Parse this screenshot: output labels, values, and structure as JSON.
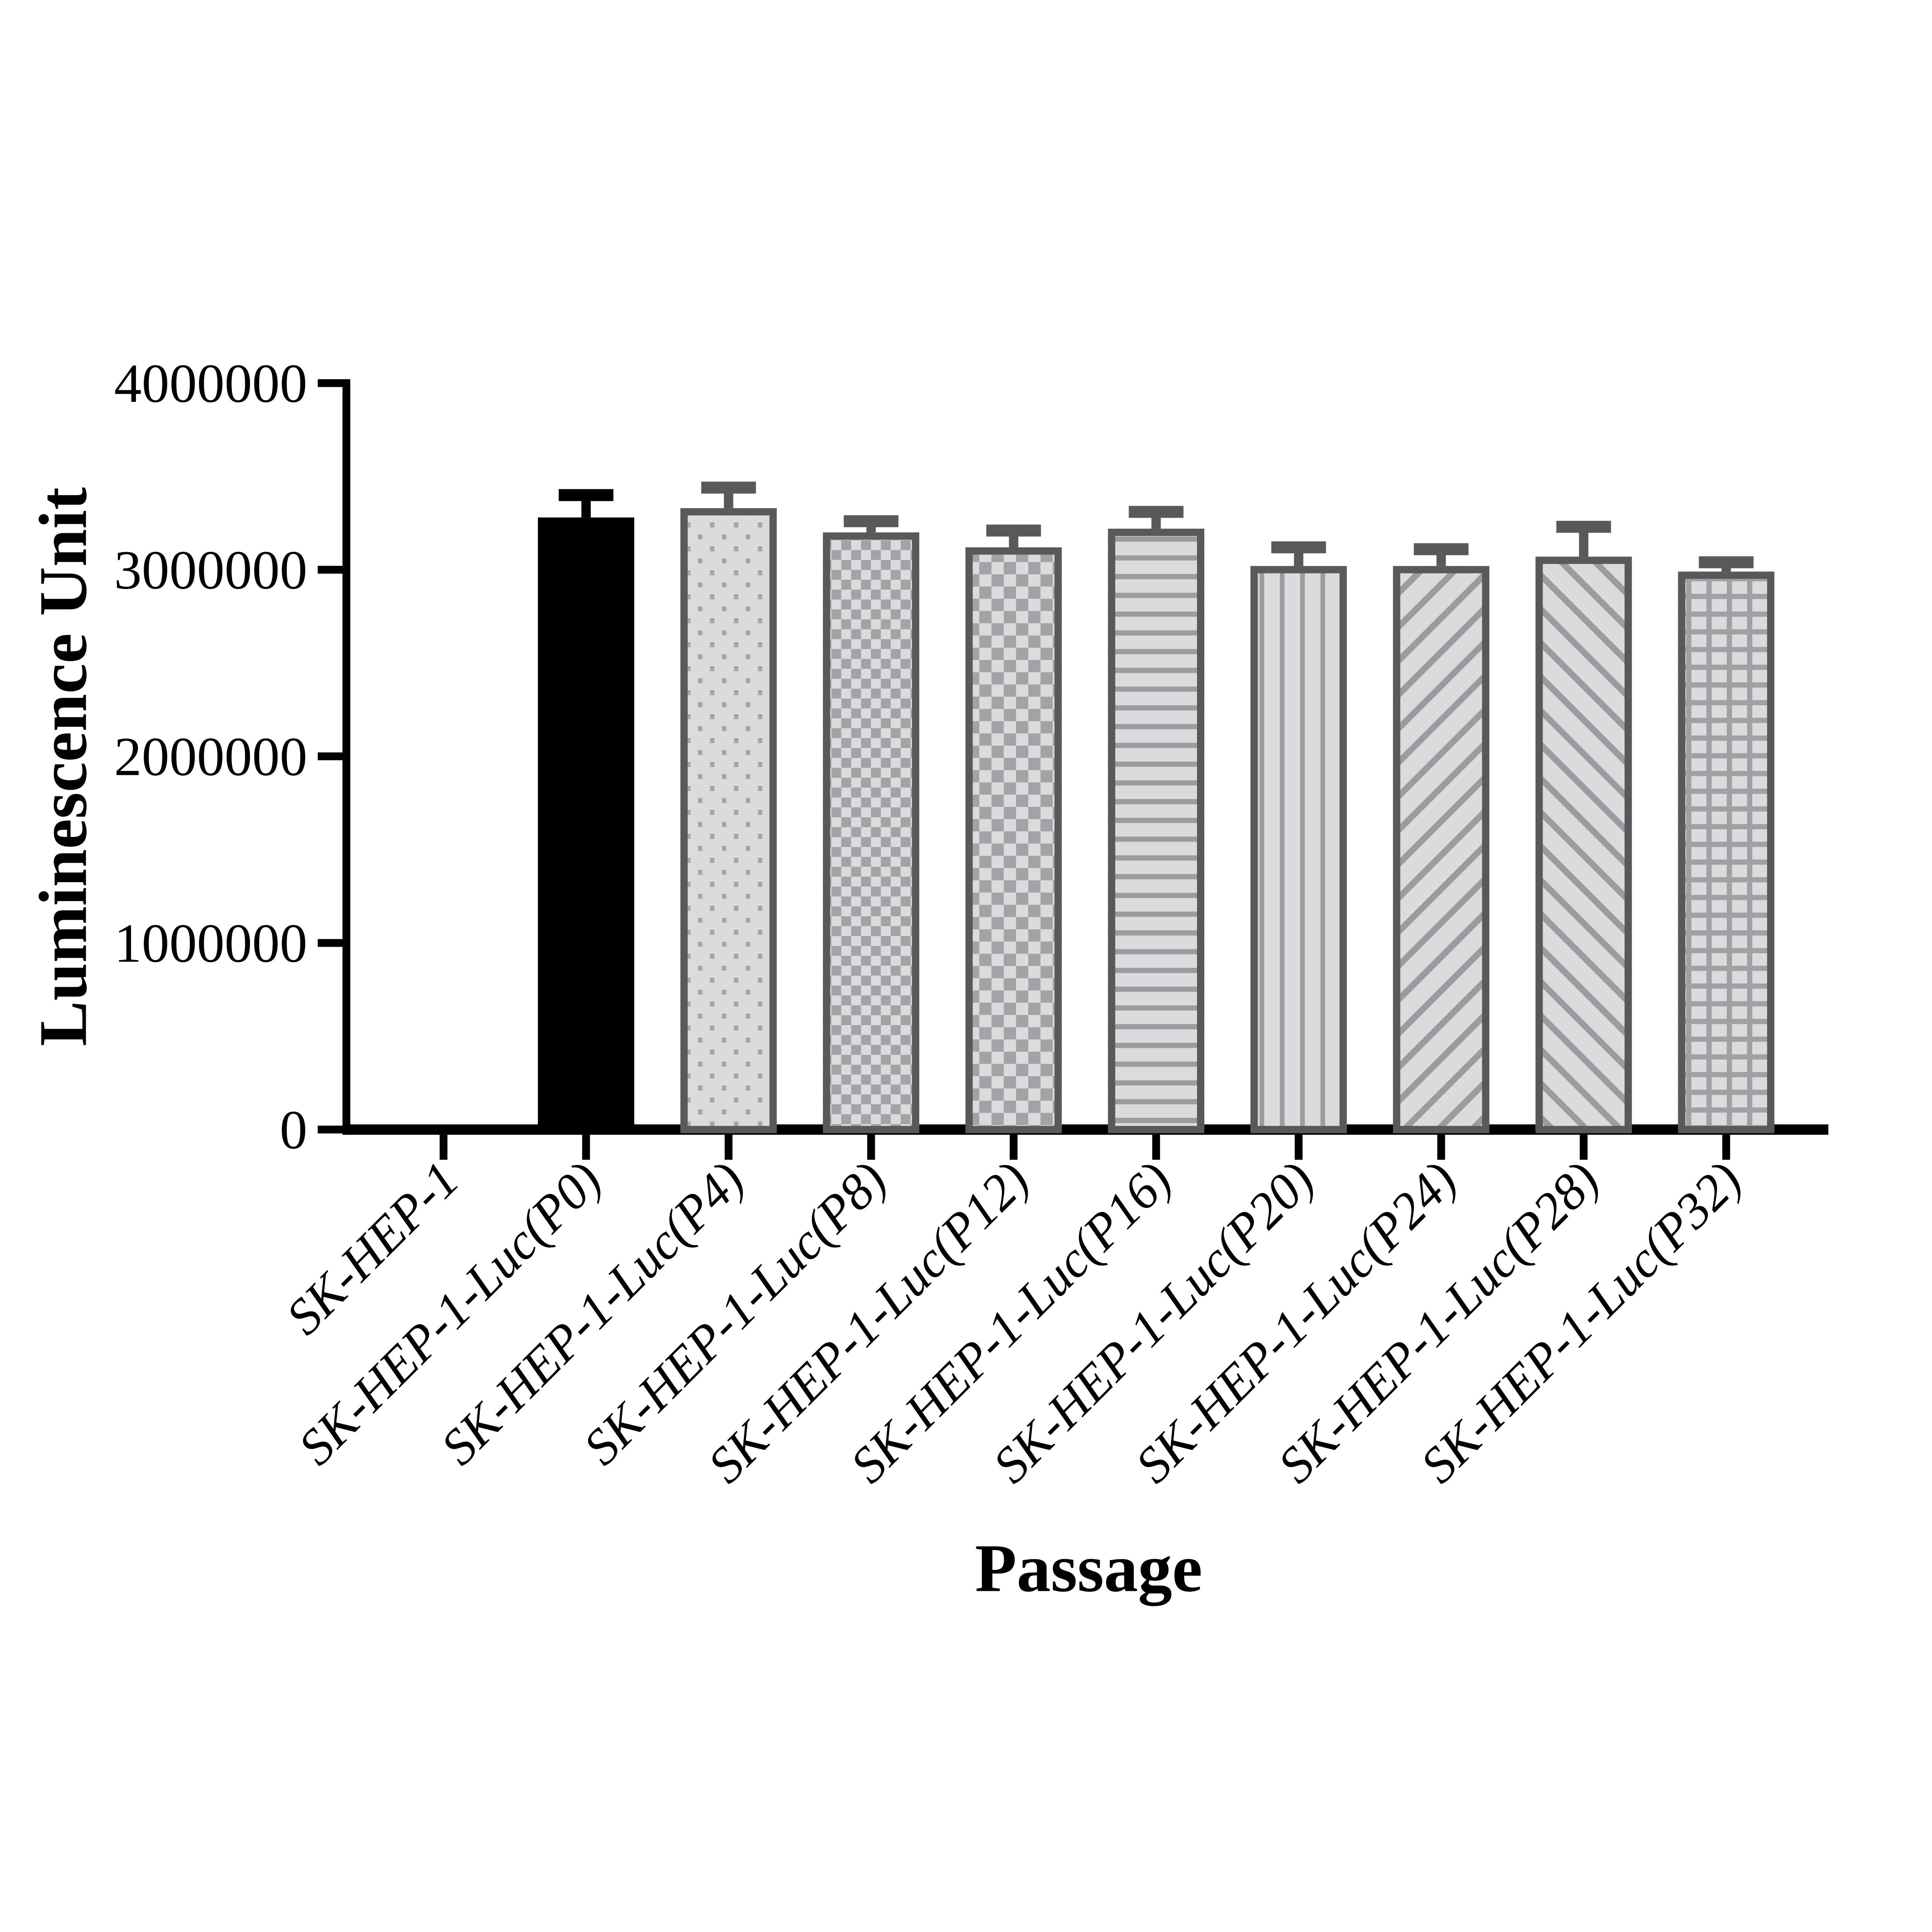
{
  "chart_data": {
    "type": "bar",
    "title": "",
    "xlabel": "Passage",
    "ylabel": "Luminescence Unit",
    "ylim": [
      0,
      4000000
    ],
    "yticks": [
      0,
      1000000,
      2000000,
      3000000,
      4000000
    ],
    "ytick_labels": [
      "0",
      "1000000",
      "2000000",
      "3000000",
      "4000000"
    ],
    "grid": false,
    "legend": "none",
    "error_bars": "upper, standard deviation",
    "categories": [
      "SK-HEP-1",
      "SK-HEP-1-Luc(P0)",
      "SK-HEP-1-Luc(P4)",
      "SK-HEP-1-Luc(P8)",
      "SK-HEP-1-Luc(P12)",
      "SK-HEP-1-Luc(P16)",
      "SK-HEP-1-Luc(P20)",
      "SK-HEP-1-Luc(P24)",
      "SK-HEP-1-Luc(P28)",
      "SK-HEP-1-Luc(P32)"
    ],
    "values": [
      0,
      3280000,
      3330000,
      3200000,
      3120000,
      3220000,
      3020000,
      3020000,
      3070000,
      2990000
    ],
    "errors": [
      0,
      120000,
      110000,
      60000,
      90000,
      90000,
      100000,
      90000,
      160000,
      50000
    ],
    "bar_patterns": [
      "none",
      "solid-black",
      "dots",
      "checkerboard-fine",
      "checkerboard-coarse",
      "horizontal-stripes",
      "vertical-stripes",
      "diagonal-up-stripes",
      "diagonal-down-stripes",
      "grid"
    ],
    "colors": {
      "black": "#000000",
      "bar_fill": "#DBDBDD",
      "bar_border": "#59595B",
      "pattern_dots": "#A5A5A9",
      "pattern_checker": "#A2A2A7",
      "pattern_stripes": "#9B9BA0",
      "pattern_grid": "#A0A0A5",
      "axis": "#000000",
      "background": "#FFFFFF"
    }
  }
}
